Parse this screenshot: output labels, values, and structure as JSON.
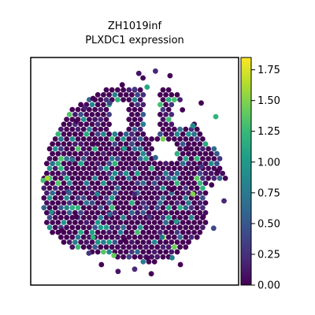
{
  "chart_data": {
    "type": "scatter",
    "title": "ZH1019inf",
    "subtitle": "PLXDC1 expression",
    "xlabel": "",
    "ylabel": "",
    "colorbar": {
      "colormap": "viridis",
      "range": [
        0.0,
        1.85
      ],
      "ticks": [
        0.0,
        0.25,
        0.5,
        0.75,
        1.0,
        1.25,
        1.5,
        1.75
      ],
      "tick_labels": [
        "0.00",
        "0.25",
        "0.50",
        "0.75",
        "1.00",
        "1.25",
        "1.50",
        "1.75"
      ],
      "colors": [
        "#440154",
        "#482878",
        "#3e4989",
        "#31688e",
        "#26828e",
        "#1f9e89",
        "#35b779",
        "#6ece58",
        "#b5de2b",
        "#fde725"
      ]
    },
    "grid": false,
    "points": [
      [
        0.52,
        0.93,
        0.1
      ],
      [
        0.54,
        0.91,
        0.0
      ],
      [
        0.6,
        0.94,
        0.2
      ],
      [
        0.67,
        0.92,
        0.0
      ],
      [
        0.44,
        0.88,
        0.0
      ],
      [
        0.5,
        0.86,
        0.3
      ],
      [
        0.56,
        0.87,
        1.1
      ],
      [
        0.3,
        0.82,
        0.0
      ],
      [
        0.26,
        0.78,
        0.2
      ],
      [
        0.22,
        0.72,
        0.0
      ],
      [
        0.38,
        0.8,
        0.4
      ],
      [
        0.73,
        0.77,
        0.0
      ],
      [
        0.82,
        0.8,
        0.0
      ],
      [
        0.89,
        0.74,
        1.2
      ],
      [
        0.78,
        0.7,
        0.9
      ],
      [
        0.3,
        0.62,
        0.0
      ],
      [
        0.2,
        0.55,
        0.7
      ],
      [
        0.45,
        0.6,
        1.0
      ],
      [
        0.6,
        0.56,
        0.6
      ],
      [
        0.75,
        0.6,
        0.0
      ],
      [
        0.82,
        0.52,
        0.3
      ],
      [
        0.9,
        0.5,
        0.0
      ],
      [
        0.08,
        0.47,
        1.6
      ],
      [
        0.06,
        0.46,
        1.3
      ],
      [
        0.18,
        0.41,
        0.5
      ],
      [
        0.32,
        0.4,
        0.8
      ],
      [
        0.5,
        0.4,
        0.2
      ],
      [
        0.68,
        0.42,
        0.0
      ],
      [
        0.78,
        0.4,
        1.5
      ],
      [
        0.87,
        0.44,
        0.0
      ],
      [
        0.93,
        0.37,
        0.2
      ],
      [
        0.1,
        0.32,
        0.9
      ],
      [
        0.22,
        0.3,
        0.0
      ],
      [
        0.38,
        0.31,
        0.6
      ],
      [
        0.57,
        0.3,
        0.3
      ],
      [
        0.7,
        0.28,
        1.0
      ],
      [
        0.83,
        0.3,
        0.0
      ],
      [
        0.88,
        0.25,
        0.4
      ],
      [
        0.15,
        0.24,
        0.0
      ],
      [
        0.3,
        0.21,
        1.2
      ],
      [
        0.45,
        0.2,
        0.0
      ],
      [
        0.63,
        0.21,
        0.7
      ],
      [
        0.76,
        0.19,
        0.0
      ],
      [
        0.28,
        0.14,
        0.3
      ],
      [
        0.4,
        0.13,
        1.4
      ],
      [
        0.56,
        0.12,
        0.0
      ],
      [
        0.68,
        0.12,
        0.8
      ],
      [
        0.72,
        0.09,
        0.0
      ],
      [
        0.5,
        0.07,
        0.2
      ],
      [
        0.58,
        0.05,
        0.0
      ],
      [
        0.42,
        0.06,
        0.1
      ],
      [
        0.34,
        0.09,
        0.0
      ]
    ]
  }
}
